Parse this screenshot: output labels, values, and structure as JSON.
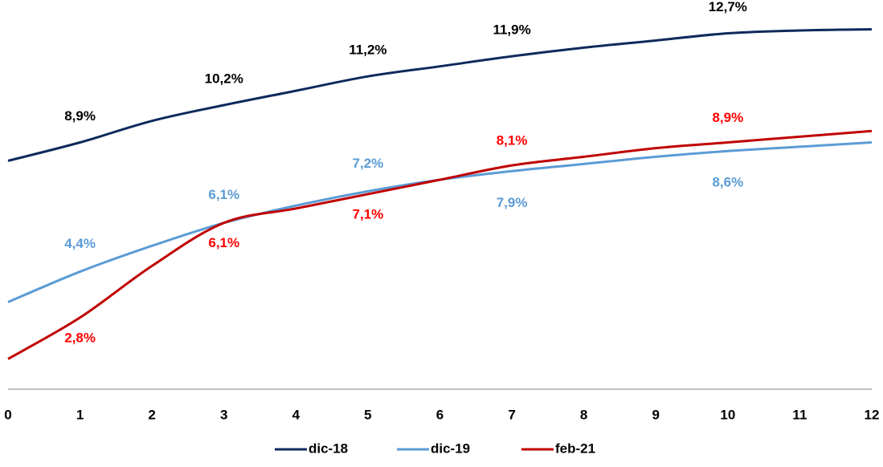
{
  "chart_data": {
    "type": "line",
    "x": [
      0,
      1,
      2,
      3,
      4,
      5,
      6,
      7,
      8,
      9,
      10,
      11,
      12
    ],
    "xlim": [
      0,
      12
    ],
    "xticks": [
      0,
      1,
      2,
      3,
      4,
      5,
      6,
      7,
      8,
      9,
      10,
      11,
      12
    ],
    "ylim": [
      0,
      14
    ],
    "series": [
      {
        "name": "dic-18",
        "color": "#0e2a5c",
        "label_color": "#000000",
        "values": [
          8.26,
          8.9,
          9.65,
          10.2,
          10.7,
          11.2,
          11.55,
          11.9,
          12.2,
          12.45,
          12.7,
          12.8,
          12.84
        ],
        "value_labels": [
          null,
          "8,9%",
          null,
          "10,2%",
          null,
          "11,2%",
          null,
          "11,9%",
          null,
          null,
          "12,7%",
          null,
          null
        ]
      },
      {
        "name": "dic-19",
        "color": "#5b9bd5",
        "label_color": "#5b9bd5",
        "values": [
          3.34,
          4.4,
          5.3,
          6.1,
          6.7,
          7.2,
          7.6,
          7.9,
          8.15,
          8.4,
          8.6,
          8.75,
          8.9
        ],
        "value_labels": [
          null,
          "4,4%",
          null,
          "6,1%",
          null,
          "7,2%",
          null,
          "7,9%",
          null,
          null,
          "8,6%",
          null,
          null
        ]
      },
      {
        "name": "feb-21",
        "color": "#c00000",
        "label_color": "#ff0000",
        "values": [
          1.36,
          2.8,
          4.6,
          6.1,
          6.6,
          7.1,
          7.6,
          8.1,
          8.4,
          8.7,
          8.9,
          9.1,
          9.3
        ],
        "value_labels": [
          null,
          "2,8%",
          null,
          "6,1%",
          null,
          "7,1%",
          null,
          "8,1%",
          null,
          null,
          "8,9%",
          null,
          null
        ]
      }
    ]
  }
}
